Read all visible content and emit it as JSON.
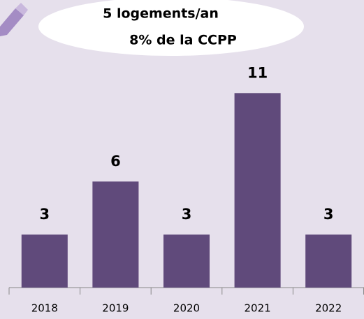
{
  "chart_data": {
    "type": "bar",
    "annotations": [
      "5 logements/an",
      "8% de la CCPP"
    ],
    "categories": [
      "2018",
      "2019",
      "2020",
      "2021",
      "2022"
    ],
    "values": [
      3,
      6,
      3,
      11,
      3
    ],
    "color": "#604a7b",
    "ylim": [
      0,
      12
    ]
  }
}
